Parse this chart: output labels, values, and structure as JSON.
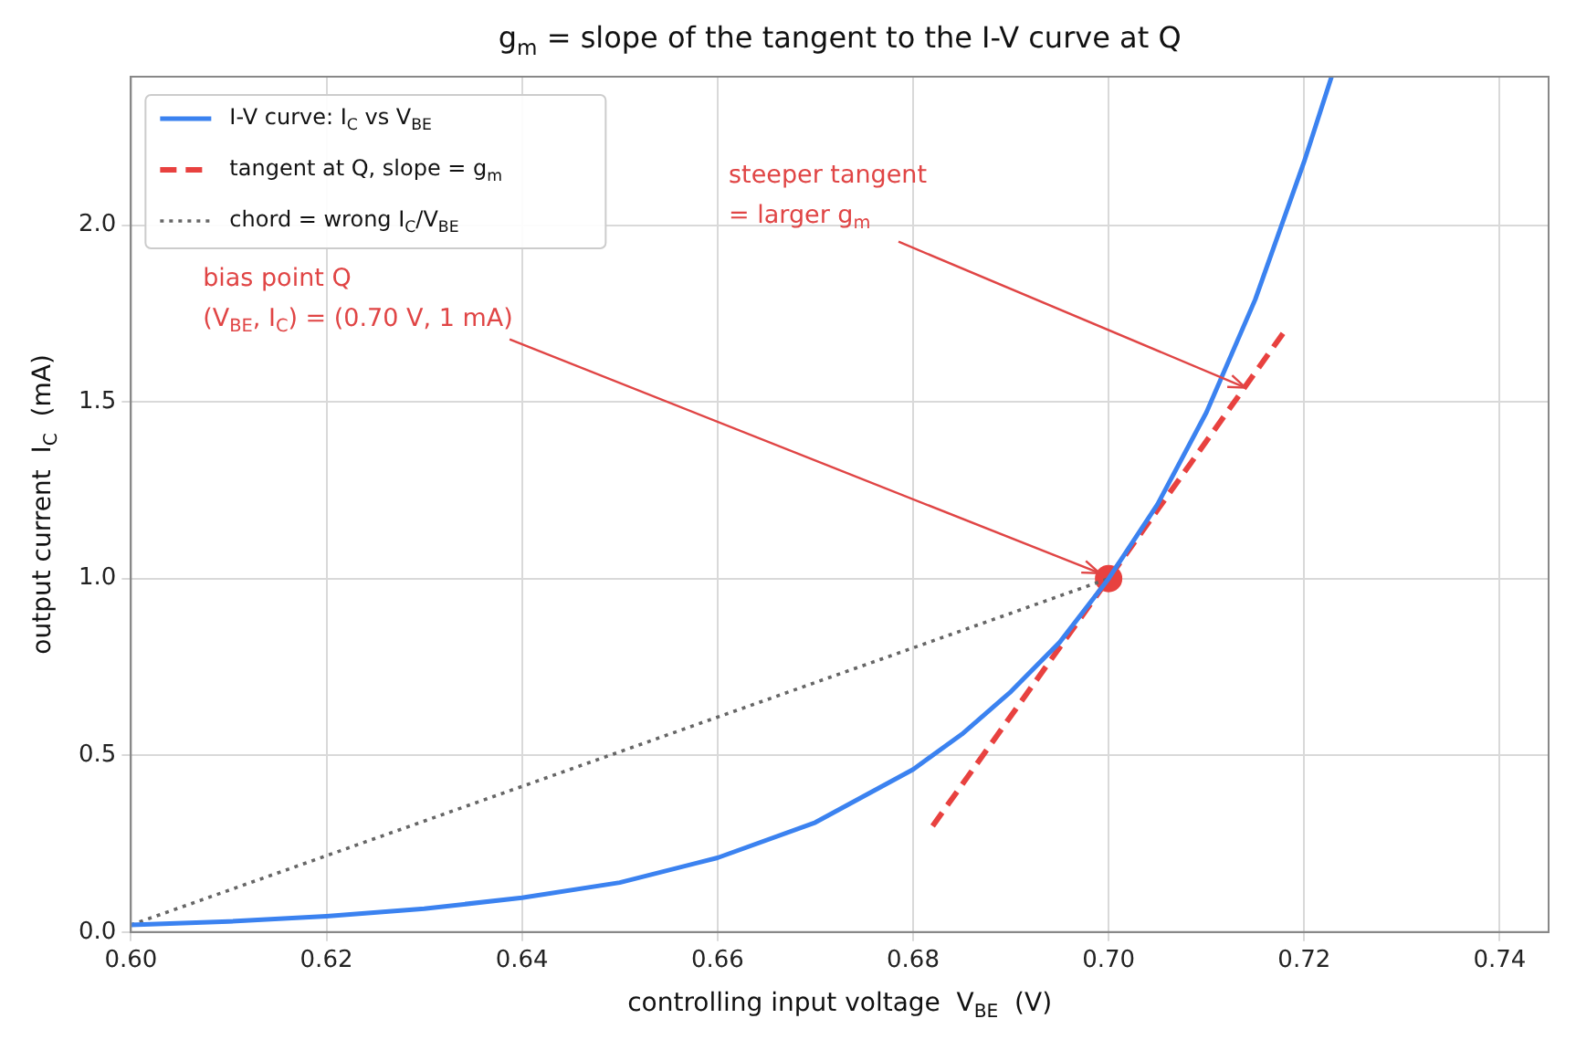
{
  "chart_data": {
    "type": "line",
    "title": "g$_{m}$ = slope of the tangent to the I-V curve at Q",
    "xlabel": "controlling input voltage  V$_{BE}$  (V)",
    "ylabel": "output current  I$_{C}$  (mA)",
    "xlim": [
      0.6,
      0.745
    ],
    "ylim": [
      0,
      2.42
    ],
    "xticks": [
      {
        "value": 0.6,
        "label": "0.60"
      },
      {
        "value": 0.62,
        "label": "0.62"
      },
      {
        "value": 0.64,
        "label": "0.64"
      },
      {
        "value": 0.66,
        "label": "0.66"
      },
      {
        "value": 0.68,
        "label": "0.68"
      },
      {
        "value": 0.7,
        "label": "0.70"
      },
      {
        "value": 0.72,
        "label": "0.72"
      },
      {
        "value": 0.74,
        "label": "0.74"
      }
    ],
    "yticks": [
      {
        "value": 0,
        "label": "0.0"
      },
      {
        "value": 0.5,
        "label": "0.5"
      },
      {
        "value": 1,
        "label": "1.0"
      },
      {
        "value": 1.5,
        "label": "1.5"
      },
      {
        "value": 2,
        "label": "2.0"
      }
    ],
    "grid": true,
    "legend": "top left",
    "series": [
      {
        "name": "I-V curve: I$_{C}$ vs V$_{BE}$",
        "type": "line",
        "color": "#3b82f0",
        "line_style": "solid",
        "x": [
          0.6,
          0.61,
          0.62,
          0.63,
          0.64,
          0.65,
          0.66,
          0.67,
          0.68,
          0.685,
          0.69,
          0.695,
          0.7,
          0.705,
          0.71,
          0.715,
          0.72,
          0.7228
        ],
        "values": [
          0.02,
          0.03,
          0.045,
          0.066,
          0.097,
          0.14,
          0.21,
          0.31,
          0.46,
          0.56,
          0.68,
          0.82,
          1.0,
          1.21,
          1.47,
          1.79,
          2.18,
          2.42
        ]
      },
      {
        "name": "tangent at Q, slope = g$_{m}$",
        "type": "line",
        "color": "#e8413f",
        "line_style": "dashed",
        "x": [
          0.682,
          0.718
        ],
        "values": [
          0.3,
          1.7
        ]
      },
      {
        "name": "chord = wrong I$_{C}$/V$_{BE}$",
        "type": "line",
        "color": "#666666",
        "line_style": "dotted",
        "x": [
          0.6,
          0.7
        ],
        "values": [
          0.02,
          1.0
        ]
      },
      {
        "type": "scatter",
        "color": "#e8413f",
        "marker": "circle",
        "x": [
          0.7
        ],
        "values": [
          1.0
        ]
      }
    ],
    "annotations": [
      {
        "text": "bias point Q\n(V$_{BE}$, I$_{C}$) = (0.70 V, 1 mA)",
        "x": 0.7,
        "y": 1.0
      },
      {
        "text": "steeper tangent\n= larger g$_{m}$",
        "x": 0.714,
        "y": 1.54
      }
    ]
  }
}
